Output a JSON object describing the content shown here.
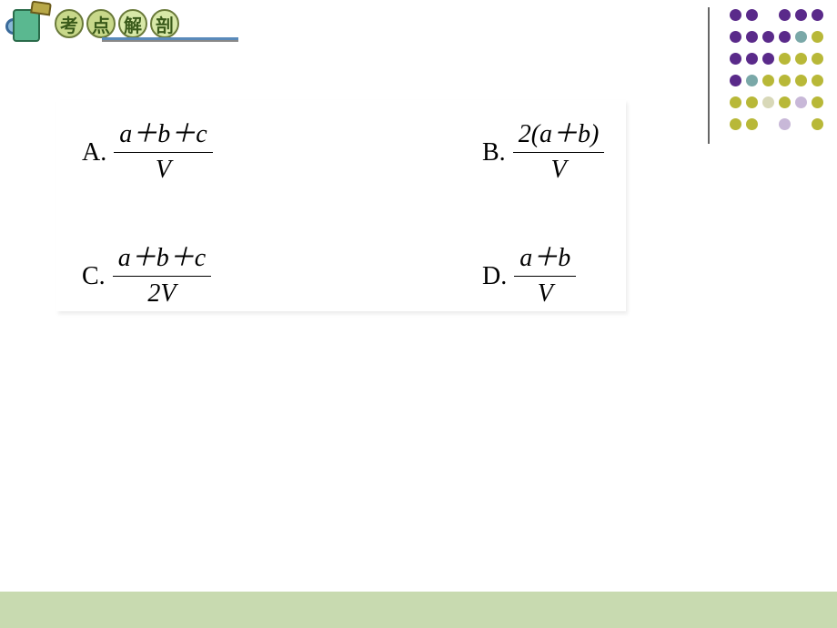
{
  "header": {
    "badges": [
      {
        "char": "考",
        "bg": "#c8d88a",
        "border": "#6a7a3a",
        "color": "#3a5a1a"
      },
      {
        "char": "点",
        "bg": "#c8d88a",
        "border": "#6a7a3a",
        "color": "#3a5a1a"
      },
      {
        "char": "解",
        "bg": "#d8e8a8",
        "border": "#6a7a3a",
        "color": "#3a5a1a"
      },
      {
        "char": "剖",
        "bg": "#d8e8a8",
        "border": "#6a7a3a",
        "color": "#3a5a1a"
      }
    ],
    "underline_color": "#5a8aba"
  },
  "dotgrid": {
    "colors": [
      [
        "#5a2a8a",
        "#5a2a8a",
        "#ffffff",
        "#5a2a8a",
        "#5a2a8a",
        "#5a2a8a"
      ],
      [
        "#5a2a8a",
        "#5a2a8a",
        "#5a2a8a",
        "#5a2a8a",
        "#7aa8a8",
        "#b8b838"
      ],
      [
        "#5a2a8a",
        "#5a2a8a",
        "#5a2a8a",
        "#b8b838",
        "#b8b838",
        "#b8b838"
      ],
      [
        "#5a2a8a",
        "#7aa8a8",
        "#b8b838",
        "#b8b838",
        "#b8b838",
        "#b8b838"
      ],
      [
        "#b8b838",
        "#b8b838",
        "#d8d8b8",
        "#b8b838",
        "#c8b8d8",
        "#b8b838"
      ],
      [
        "#b8b838",
        "#b8b838",
        "#ffffff",
        "#c8b8d8",
        "#ffffff",
        "#b8b838"
      ]
    ]
  },
  "options": {
    "A": {
      "label": "A.",
      "num": "a＋b＋c",
      "den": "V"
    },
    "B": {
      "label": "B.",
      "num": "2(a＋b)",
      "den": "V"
    },
    "C": {
      "label": "C.",
      "num": "a＋b＋c",
      "den": "2V"
    },
    "D": {
      "label": "D.",
      "num": "a＋b",
      "den": "V"
    }
  },
  "footer": {
    "color": "#c8dab0"
  }
}
